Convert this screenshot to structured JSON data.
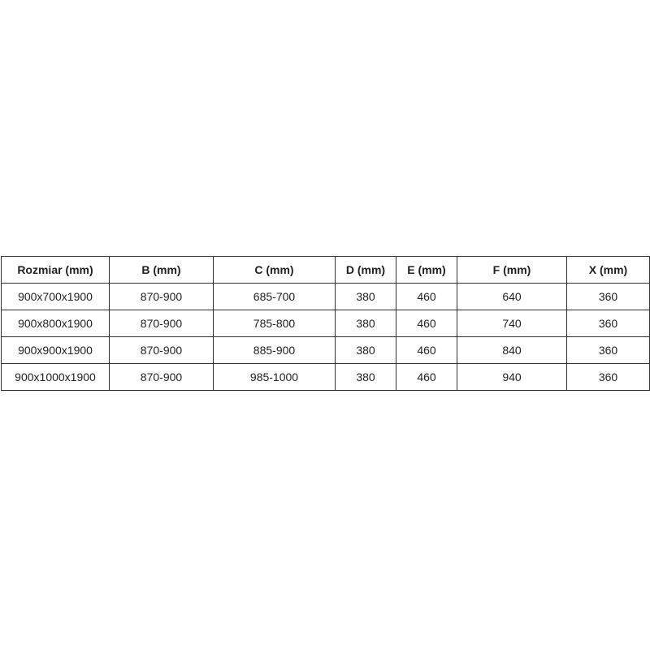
{
  "table": {
    "headers": [
      "Rozmiar (mm)",
      "B (mm)",
      "C (mm)",
      "D (mm)",
      "E (mm)",
      "F (mm)",
      "X (mm)"
    ],
    "rows": [
      [
        "900x700x1900",
        "870-900",
        "685-700",
        "380",
        "460",
        "640",
        "360"
      ],
      [
        "900x800x1900",
        "870-900",
        "785-800",
        "380",
        "460",
        "740",
        "360"
      ],
      [
        "900x900x1900",
        "870-900",
        "885-900",
        "380",
        "460",
        "840",
        "360"
      ],
      [
        "900x1000x1900",
        "870-900",
        "985-1000",
        "380",
        "460",
        "940",
        "360"
      ]
    ]
  }
}
